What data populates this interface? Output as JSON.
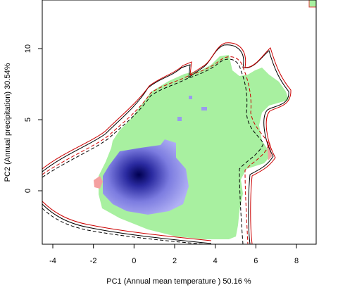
{
  "chart_data": {
    "type": "niche",
    "xlabel": "PC1 (Annual mean temperature ) 50.16 %",
    "ylabel": "PC2 (Annual precipitation) 30.54%",
    "xlim": [
      -4.52,
      8.97
    ],
    "ylim": [
      -3.76,
      13.42
    ],
    "xticks": [
      -4,
      -2,
      0,
      2,
      4,
      6,
      8
    ],
    "yticks": [
      0,
      5,
      10
    ]
  }
}
